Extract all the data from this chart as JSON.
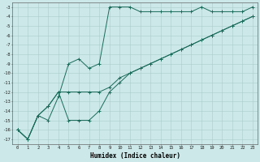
{
  "title": "",
  "xlabel": "Humidex (Indice chaleur)",
  "bg_color": "#cce8e8",
  "grid_color": "#aacccc",
  "line_color": "#1a6b5a",
  "xlim": [
    -0.5,
    23.5
  ],
  "ylim": [
    -17.5,
    -2.5
  ],
  "yticks": [
    -17,
    -16,
    -15,
    -14,
    -13,
    -12,
    -11,
    -10,
    -9,
    -8,
    -7,
    -6,
    -5,
    -4,
    -3
  ],
  "xticks": [
    0,
    1,
    2,
    3,
    4,
    5,
    6,
    7,
    8,
    9,
    10,
    11,
    12,
    13,
    14,
    15,
    16,
    17,
    18,
    19,
    20,
    21,
    22,
    23
  ],
  "line1_x": [
    0,
    1,
    2,
    3,
    4,
    5,
    6,
    7,
    8,
    9,
    10,
    11,
    12,
    13,
    14,
    15,
    16,
    17,
    18,
    19,
    20,
    21,
    22,
    23
  ],
  "line1_y": [
    -16,
    -17,
    -14.5,
    -15,
    -12.5,
    -9,
    -8.5,
    -9.5,
    -9,
    -3,
    -3,
    -3,
    -3.5,
    -3.5,
    -3.5,
    -3.5,
    -3.5,
    -3.5,
    -3,
    -3.5,
    -3.5,
    -3.5,
    -3.5,
    -3
  ],
  "line2_x": [
    0,
    1,
    2,
    3,
    4,
    5,
    6,
    7,
    8,
    9,
    10,
    11,
    12,
    13,
    14,
    15,
    16,
    17,
    18,
    19,
    20,
    21,
    22,
    23
  ],
  "line2_y": [
    -16,
    -17,
    -14.5,
    -13.5,
    -12,
    -15,
    -15,
    -15,
    -14,
    -12,
    -11,
    -10,
    -9.5,
    -9,
    -8.5,
    -8,
    -7.5,
    -7,
    -6.5,
    -6,
    -5.5,
    -5,
    -4.5,
    -4
  ],
  "line3_x": [
    0,
    1,
    2,
    3,
    4,
    5,
    6,
    7,
    8,
    9,
    10,
    11,
    12,
    13,
    14,
    15,
    16,
    17,
    18,
    19,
    20,
    21,
    22,
    23
  ],
  "line3_y": [
    -16,
    -17,
    -14.5,
    -13.5,
    -12,
    -12,
    -12,
    -12,
    -12,
    -11.5,
    -10.5,
    -10,
    -9.5,
    -9,
    -8.5,
    -8,
    -7.5,
    -7,
    -6.5,
    -6,
    -5.5,
    -5,
    -4.5,
    -4
  ]
}
